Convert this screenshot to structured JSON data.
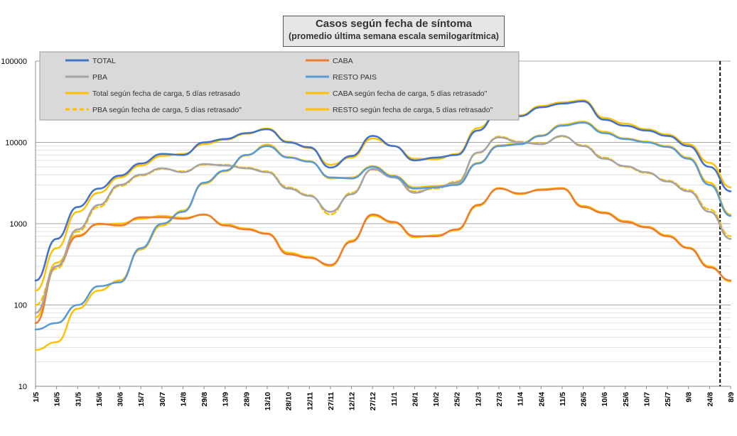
{
  "chart_data": {
    "type": "line",
    "title": "Casos según fecha de síntoma",
    "subtitle": "(promedio última semana escala semilogarítmica)",
    "xlabel": "",
    "ylabel": "",
    "y_scale": "log",
    "ylim": [
      10,
      100000
    ],
    "y_ticks": [
      "10",
      "100",
      "1000",
      "10000",
      "100000"
    ],
    "x_tick_labels": [
      "1/5",
      "16/5",
      "31/5",
      "15/6",
      "30/6",
      "15/7",
      "30/7",
      "14/8",
      "29/8",
      "13/9",
      "28/9",
      "13/10",
      "28/10",
      "12/11",
      "27/11",
      "12/12",
      "27/12",
      "11/1",
      "26/1",
      "10/2",
      "25/2",
      "12/3",
      "27/3",
      "11/4",
      "26/4",
      "11/5",
      "26/5",
      "10/6",
      "25/6",
      "10/7",
      "25/7",
      "9/8",
      "24/8",
      "8/9"
    ],
    "x_index": [
      0,
      1,
      2,
      3,
      4,
      5,
      6,
      7,
      8,
      9,
      10,
      11,
      12,
      13,
      14,
      15,
      16,
      17,
      18,
      19,
      20,
      21,
      22,
      23,
      24,
      25,
      26,
      27,
      28,
      29,
      30,
      31,
      32,
      33
    ],
    "grid": true,
    "legend_position": "top",
    "vertical_marker_x": 32.5,
    "series": [
      {
        "name": "TOTAL",
        "color": "#4472c4",
        "dash": false,
        "width": 2.6,
        "values": [
          200,
          650,
          1600,
          2700,
          3900,
          5500,
          7200,
          7000,
          10000,
          11000,
          13000,
          14500,
          10000,
          8700,
          4900,
          6800,
          12000,
          9000,
          6000,
          6500,
          7000,
          14000,
          24000,
          21000,
          27000,
          30000,
          32000,
          19000,
          16000,
          14000,
          12000,
          9000,
          5000,
          2500
        ]
      },
      {
        "name": "CABA",
        "color": "#ed7d31",
        "dash": false,
        "width": 2.6,
        "values": [
          60,
          300,
          700,
          1000,
          950,
          1200,
          1200,
          1150,
          1300,
          950,
          850,
          750,
          420,
          380,
          310,
          600,
          1300,
          1050,
          700,
          700,
          850,
          1700,
          2700,
          2350,
          2600,
          2700,
          1600,
          1350,
          1050,
          900,
          700,
          500,
          290,
          200
        ]
      },
      {
        "name": "PBA",
        "color": "#a5a5a5",
        "dash": false,
        "width": 2.6,
        "values": [
          80,
          300,
          850,
          1700,
          3000,
          4000,
          4800,
          4300,
          5400,
          5200,
          4800,
          4300,
          2700,
          2200,
          1400,
          2300,
          4700,
          3700,
          2400,
          2800,
          3200,
          7500,
          11500,
          10000,
          9500,
          12000,
          9000,
          6300,
          5100,
          4300,
          3300,
          2500,
          1400,
          650
        ]
      },
      {
        "name": "RESTO PAIS",
        "color": "#5b9bd5",
        "dash": false,
        "width": 2.6,
        "values": [
          50,
          60,
          100,
          170,
          190,
          500,
          1000,
          1400,
          3200,
          4500,
          7000,
          9000,
          6500,
          5800,
          3700,
          3600,
          5000,
          3800,
          2700,
          2800,
          3000,
          5500,
          9000,
          9500,
          12000,
          16000,
          17500,
          13000,
          11000,
          10000,
          8800,
          6300,
          3000,
          1250
        ]
      },
      {
        "name": "Total según fecha de carga, 5 días retrasado",
        "color": "#ffc000",
        "dash": false,
        "width": 2.4,
        "values": [
          150,
          500,
          1400,
          2400,
          3700,
          5200,
          6800,
          7200,
          9500,
          10800,
          12700,
          14800,
          10200,
          8500,
          5300,
          6500,
          11200,
          9000,
          6300,
          6200,
          7200,
          15000,
          23500,
          21500,
          28000,
          31000,
          33000,
          20000,
          17000,
          14500,
          12500,
          9500,
          5600,
          2800
        ]
      },
      {
        "name": "CABA según fecha de carga, 5 días retrasado\"",
        "color": "#ffc000",
        "dash": false,
        "width": 2.4,
        "values": [
          70,
          330,
          720,
          980,
          1000,
          1150,
          1250,
          1180,
          1280,
          980,
          870,
          760,
          440,
          390,
          300,
          620,
          1250,
          1030,
          680,
          720,
          830,
          1650,
          2750,
          2300,
          2650,
          2750,
          1650,
          1380,
          1080,
          920,
          720,
          510,
          300,
          195
        ]
      },
      {
        "name": "PBA según fecha de carga, 5 días retrasado\"",
        "color": "#ffc000",
        "dash": true,
        "width": 2.4,
        "values": [
          100,
          280,
          800,
          1600,
          2900,
          3900,
          4700,
          4400,
          5300,
          5300,
          4900,
          4400,
          2800,
          2250,
          1300,
          2400,
          4600,
          3800,
          2500,
          2700,
          3300,
          7400,
          11800,
          10200,
          9700,
          11800,
          9200,
          6500,
          5000,
          4200,
          3400,
          2600,
          1500,
          700
        ]
      },
      {
        "name": "RESTO según fecha de carga, 5 días retrasado\"",
        "color": "#ffc000",
        "dash": false,
        "width": 2.4,
        "values": [
          28,
          35,
          90,
          150,
          200,
          480,
          950,
          1450,
          3100,
          4400,
          6900,
          9400,
          6600,
          5900,
          3600,
          3700,
          5100,
          3900,
          2800,
          2900,
          3100,
          5600,
          9200,
          9700,
          12200,
          16500,
          18000,
          13500,
          11200,
          10200,
          9000,
          6500,
          3200,
          1300
        ]
      }
    ]
  }
}
